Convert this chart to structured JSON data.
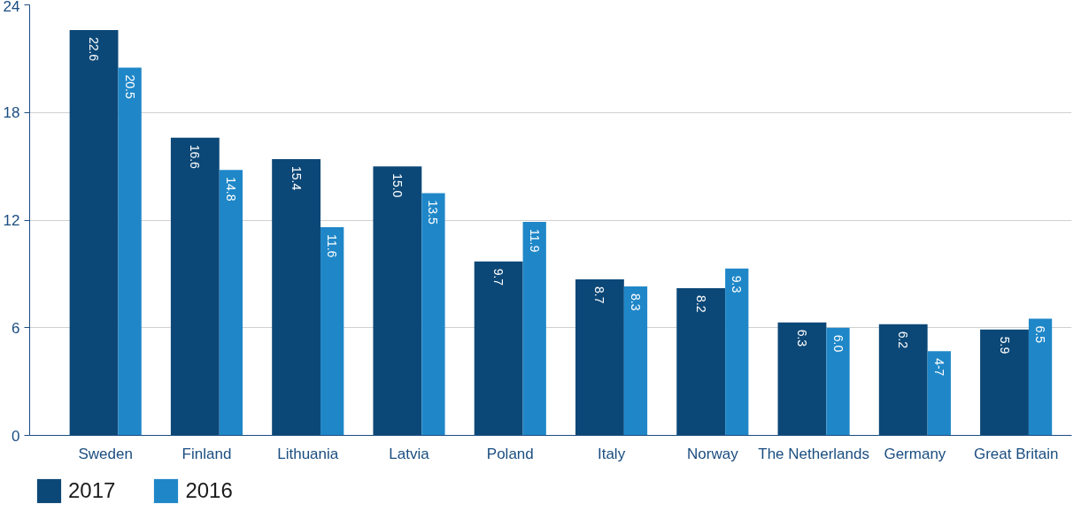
{
  "chart_data": {
    "type": "bar",
    "categories": [
      "Sweden",
      "Finland",
      "Lithuania",
      "Latvia",
      "Poland",
      "Italy",
      "Norway",
      "The Netherlands",
      "Germany",
      "Great Britain"
    ],
    "series": [
      {
        "name": "2017",
        "color": "#0c4877",
        "values": [
          22.6,
          16.6,
          15.4,
          15.0,
          9.7,
          8.7,
          8.2,
          6.3,
          6.2,
          5.9
        ],
        "value_labels": [
          "22.6",
          "16.6",
          "15.4",
          "15.0",
          "9.7",
          "8.7",
          "8.2",
          "6.3",
          "6.2",
          "5.9"
        ]
      },
      {
        "name": "2016",
        "color": "#1f87c8",
        "values": [
          20.5,
          14.8,
          11.6,
          13.5,
          11.9,
          8.3,
          9.3,
          6.0,
          4.7,
          6.5
        ],
        "value_labels": [
          "20.5",
          "14.8",
          "11.6",
          "13.5",
          "11.9",
          "8.3",
          "9.3",
          "6.0",
          "4-7",
          "6.5"
        ]
      }
    ],
    "ylim": [
      0,
      24
    ],
    "yticks": [
      0,
      6,
      12,
      18,
      24
    ],
    "grid": "y",
    "legend": "bottom left"
  }
}
